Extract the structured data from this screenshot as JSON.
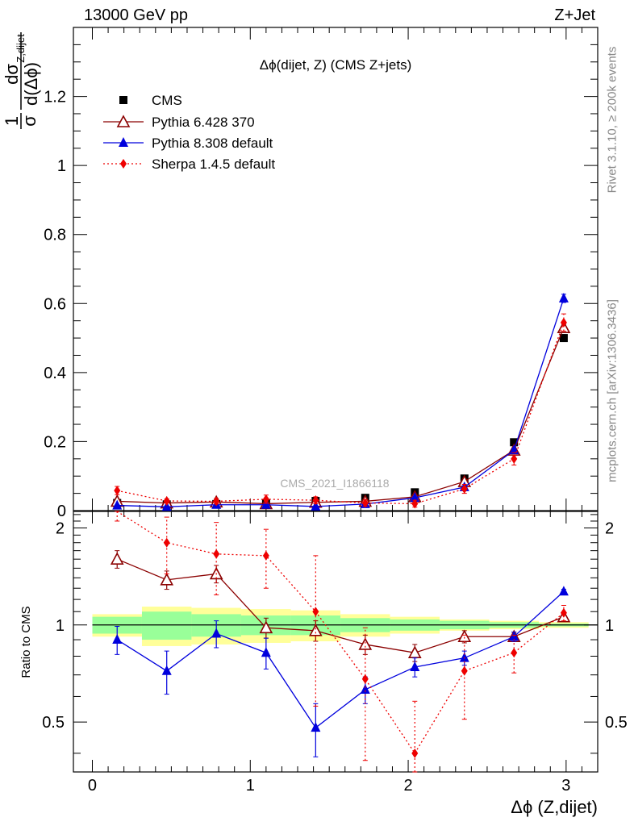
{
  "header": {
    "left": "13000 GeV pp",
    "right": "Z+Jet"
  },
  "side": {
    "rivet": "Rivet 3.1.10, ≥ 200k events",
    "mcplots": "mcplots.cern.ch [arXiv:1306.3436]"
  },
  "colors": {
    "cms": "#000000",
    "pythia6": "#8b0000",
    "pythia8": "#0000dd",
    "sherpa": "#ee0000",
    "band_inner": "#99ff99",
    "band_outer": "#ffff99"
  },
  "chart_data": [
    {
      "type": "scatter",
      "title": "Δϕ(dijet, Z)  (CMS Z+jets)",
      "watermark": "CMS_2021_I1866118",
      "ylabel_parts": {
        "prefix": "1",
        "sigma": "σ",
        "num": "dσ",
        "den": "d(Δϕ",
        "sup": "Z,dijet",
        "close": ")"
      },
      "xlim": [
        -0.12,
        3.2
      ],
      "ylim": [
        0,
        1.4
      ],
      "yticks": [
        0,
        0.2,
        0.4,
        0.6,
        0.8,
        1,
        1.2
      ],
      "ytick_labels": [
        "0",
        "0.2",
        "0.4",
        "0.6",
        "0.8",
        "1",
        "1.2"
      ],
      "x": [
        0.157,
        0.471,
        0.785,
        1.1,
        1.414,
        1.728,
        2.042,
        2.356,
        2.67,
        2.985
      ],
      "series": [
        {
          "name": "CMS",
          "values": [
            0.022,
            0.018,
            0.019,
            0.022,
            0.028,
            0.037,
            0.053,
            0.093,
            0.198,
            0.5
          ],
          "errors": [
            0.003,
            0.002,
            0.002,
            0.003,
            0.003,
            0.004,
            0.004,
            0.005,
            0.008,
            0.01
          ]
        },
        {
          "name": "Pythia 6.428 370",
          "values": [
            0.027,
            0.022,
            0.025,
            0.02,
            0.024,
            0.027,
            0.04,
            0.084,
            0.175,
            0.53
          ],
          "errors": [
            0.002,
            0.002,
            0.002,
            0.002,
            0.002,
            0.002,
            0.003,
            0.004,
            0.006,
            0.01
          ]
        },
        {
          "name": "Pythia 8.308 default",
          "values": [
            0.015,
            0.011,
            0.017,
            0.017,
            0.012,
            0.019,
            0.037,
            0.068,
            0.175,
            0.615
          ],
          "errors": [
            0.002,
            0.002,
            0.002,
            0.002,
            0.002,
            0.002,
            0.003,
            0.004,
            0.006,
            0.012
          ]
        },
        {
          "name": "Sherpa 1.4.5 default",
          "values": [
            0.058,
            0.028,
            0.027,
            0.033,
            0.03,
            0.022,
            0.02,
            0.063,
            0.15,
            0.545
          ],
          "errors": [
            0.012,
            0.006,
            0.008,
            0.012,
            0.01,
            0.009,
            0.01,
            0.013,
            0.018,
            0.025
          ]
        }
      ]
    },
    {
      "type": "line",
      "ylabel": "Ratio to CMS",
      "xlabel": "Δϕ (Z,dijet)",
      "xlim": [
        -0.12,
        3.2
      ],
      "ylim": [
        0.35,
        2.25
      ],
      "xticks": [
        0,
        1,
        2,
        3
      ],
      "xtick_labels": [
        "0",
        "1",
        "2",
        "3"
      ],
      "yticks": [
        0.5,
        1,
        2
      ],
      "ytick_labels": [
        "0.5",
        "1",
        "2"
      ],
      "x": [
        0.157,
        0.471,
        0.785,
        1.1,
        1.414,
        1.728,
        2.042,
        2.356,
        2.67,
        2.985
      ],
      "band_edges": [
        0,
        0.314,
        0.628,
        0.942,
        1.257,
        1.571,
        1.885,
        2.199,
        2.513,
        2.827,
        3.142
      ],
      "band_inner": [
        0.06,
        0.1,
        0.08,
        0.07,
        0.07,
        0.05,
        0.04,
        0.03,
        0.02,
        0.01
      ],
      "band_outer": [
        0.08,
        0.14,
        0.13,
        0.12,
        0.11,
        0.08,
        0.06,
        0.04,
        0.03,
        0.02
      ],
      "series": [
        {
          "name": "Pythia 6.428 370",
          "values": [
            1.6,
            1.38,
            1.44,
            0.98,
            0.96,
            0.87,
            0.82,
            0.92,
            0.92,
            1.06
          ],
          "errors": [
            0.1,
            0.09,
            0.09,
            0.07,
            0.07,
            0.06,
            0.05,
            0.04,
            0.03,
            0.02
          ]
        },
        {
          "name": "Pythia 8.308 default",
          "values": [
            0.9,
            0.72,
            0.94,
            0.82,
            0.48,
            0.63,
            0.74,
            0.79,
            0.92,
            1.27
          ],
          "errors": [
            0.09,
            0.11,
            0.09,
            0.09,
            0.09,
            0.06,
            0.05,
            0.04,
            0.03,
            0.02
          ]
        },
        {
          "name": "Sherpa 1.4.5 default",
          "values": [
            2.6,
            1.8,
            1.66,
            1.64,
            1.1,
            0.68,
            0.4,
            0.72,
            0.82,
            1.09
          ],
          "errors": [
            0.5,
            0.36,
            0.42,
            0.34,
            0.54,
            0.3,
            0.18,
            0.21,
            0.11,
            0.06
          ]
        }
      ]
    }
  ]
}
